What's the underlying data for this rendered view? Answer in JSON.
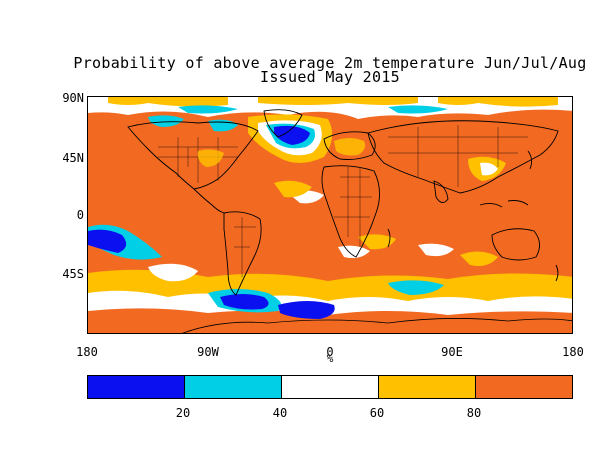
{
  "title": {
    "line1": "Probability of above average 2m temperature Jun/Jul/Aug",
    "line2": "Issued May 2015"
  },
  "map": {
    "lat_labels": [
      "90N",
      "45N",
      "0",
      "45S"
    ],
    "lon_labels": [
      "180",
      "90W",
      "0",
      "90E",
      "180"
    ],
    "units": "%",
    "background_color": "#f26a22"
  },
  "colorbar": {
    "colors": [
      "#0a10f0",
      "#00cfe6",
      "#ffffff",
      "#ffc000",
      "#f26a22"
    ],
    "labels": [
      "20",
      "40",
      "60",
      "80"
    ]
  }
}
